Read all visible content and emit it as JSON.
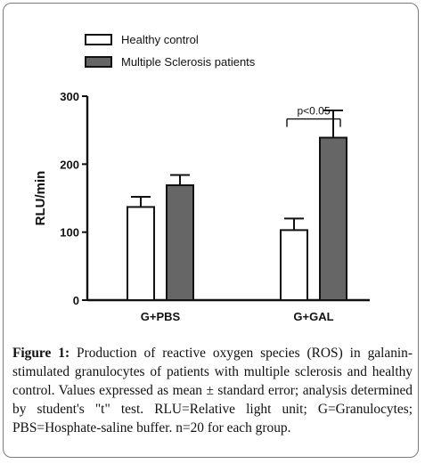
{
  "chart_data": {
    "type": "bar",
    "categories": [
      "G+PBS",
      "G+GAL"
    ],
    "series": [
      {
        "name": "Healthy control",
        "values": [
          137,
          103
        ],
        "errors": [
          15,
          17
        ],
        "color": "#ffffff"
      },
      {
        "name": "Multiple Sclerosis patients",
        "values": [
          169,
          239
        ],
        "errors": [
          15,
          40
        ],
        "color": "#666666"
      }
    ],
    "ylabel": "RLU/min",
    "ylim": [
      0,
      300
    ],
    "yticks": [
      "0",
      "100",
      "200",
      "300"
    ],
    "annotation": "p<0.05",
    "legend_position": "top-left",
    "grid": false
  },
  "caption": {
    "label": "Figure 1:",
    "text": "Production of reactive oxygen species (ROS) in galanin-stimulated granulocytes of patients with multiple sclerosis and healthy control. Values expressed as mean ± standard error; analysis determined by student's \"t\" test. RLU=Relative light unit; G=Granulocytes; PBS=Hosphate-saline buffer. n=20 for each group."
  }
}
